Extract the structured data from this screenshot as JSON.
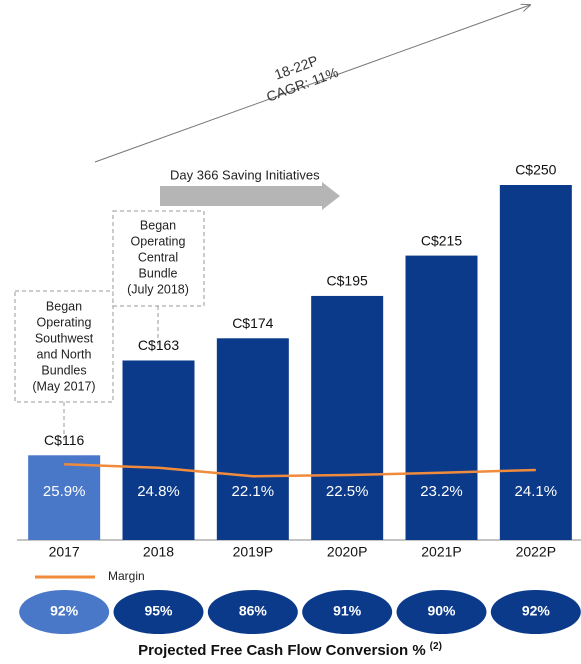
{
  "chart_data": {
    "type": "bar",
    "categories": [
      "2017",
      "2018",
      "2019P",
      "2020P",
      "2021P",
      "2022P"
    ],
    "ylim": [
      74,
      250
    ],
    "y2lim": [
      2,
      114
    ],
    "series": [
      {
        "type": "bar",
        "colors": [
          "#4a78c8",
          "#0b3a8a",
          "#0b3a8a",
          "#0b3a8a",
          "#0b3a8a",
          "#0b3a8a"
        ],
        "values": [
          116,
          163,
          174,
          195,
          215,
          250
        ],
        "value_labels": [
          "C$116",
          "C$163",
          "C$174",
          "C$195",
          "C$215",
          "C$250"
        ]
      },
      {
        "type": "line",
        "name": "Margin",
        "color": "#f08a3c",
        "axis": "y2",
        "values": [
          25.9,
          24.8,
          22.1,
          22.5,
          23.2,
          24.1
        ],
        "value_labels": [
          "25.9%",
          "24.8%",
          "22.1%",
          "22.5%",
          "23.2%",
          "24.1%"
        ]
      }
    ],
    "annotations": {
      "cagr": [
        "18-22P",
        "CAGR: 11%"
      ],
      "initiative": "Day 366 Saving Initiatives",
      "box_2017": [
        "Began",
        "Operating",
        "Southwest",
        "and North",
        "Bundles",
        "(May 2017)"
      ],
      "box_2018": [
        "Began",
        "Operating",
        "Central",
        "Bundle",
        "(July 2018)"
      ]
    },
    "conversion": {
      "title": "Projected Free Cash Flow Conversion %",
      "footnote": "(2)",
      "colors": [
        "#4a78c8",
        "#0b3a8a",
        "#0b3a8a",
        "#0b3a8a",
        "#0b3a8a",
        "#0b3a8a"
      ],
      "values": [
        92,
        95,
        86,
        91,
        90,
        92
      ],
      "value_labels": [
        "92%",
        "95%",
        "86%",
        "91%",
        "90%",
        "92%"
      ]
    }
  }
}
